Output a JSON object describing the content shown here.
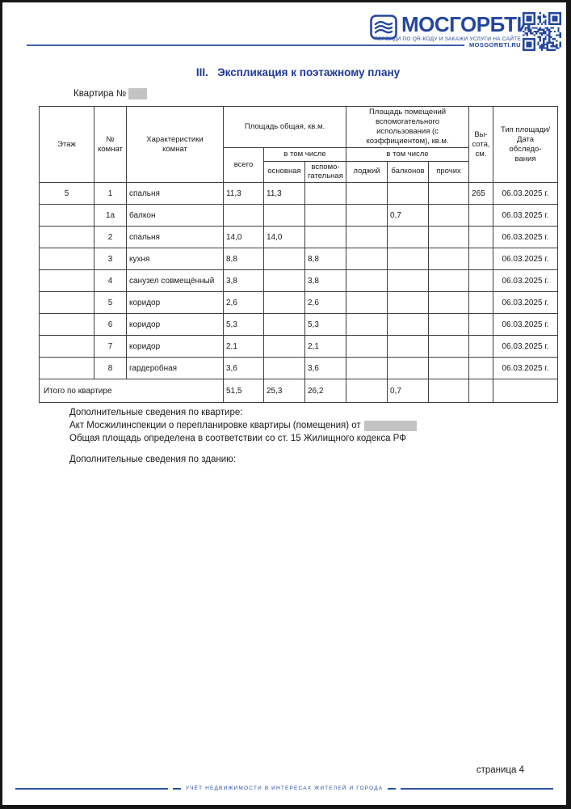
{
  "colors": {
    "brand_blue": "#23479c",
    "title_blue": "#1e3799",
    "rule_blue": "#3d5fa8",
    "footer_blue": "#2b52a3",
    "table_border": "#3f3f3f",
    "redaction_gray": "#c3c3c3",
    "page_border": "#161616"
  },
  "header": {
    "brand": "МОСГОРБТИ",
    "tagline": "ПЕРЕЙДИ ПО QR-КОДУ И ЗАКАЖИ УСЛУГИ НА САЙТЕ",
    "site": "MOSGORBTI.RU",
    "logo_icon": "wave-icon",
    "qr_icon": "qr-code-icon"
  },
  "document": {
    "title": "III.   Экспликация к поэтажному плану",
    "apartment_label": "Квартира №",
    "apartment_value_redacted": ""
  },
  "table": {
    "header": {
      "floor": "Этаж",
      "room_no": "№\nкомнат",
      "characteristics": "Характеристики\nкомнат",
      "total_area_group": "Площадь общая, кв.м.",
      "aux_area_group": "Площадь помещений вспомогательного использования (с коэффициентом), кв.м.",
      "total": "всего",
      "including": "в том числе",
      "including2": "в том числе",
      "main": "основная",
      "auxiliary": "вспомо-\nгательная",
      "loggias": "лоджий",
      "balconies": "балконов",
      "other": "прочих",
      "height": "Вы-\nсота,\nсм.",
      "type_date": "Тип площади/\nДата\nобследо-\nвания"
    },
    "rows": [
      [
        "5",
        "1",
        "спальня",
        "11,3",
        "11,3",
        "",
        "",
        "",
        "",
        "265",
        "06.03.2025 г."
      ],
      [
        "",
        "1а",
        "балкон",
        "",
        "",
        "",
        "",
        "0,7",
        "",
        "",
        "06.03.2025 г."
      ],
      [
        "",
        "2",
        "спальня",
        "14,0",
        "14,0",
        "",
        "",
        "",
        "",
        "",
        "06.03.2025 г."
      ],
      [
        "",
        "3",
        "кухня",
        "8,8",
        "",
        "8,8",
        "",
        "",
        "",
        "",
        "06.03.2025 г."
      ],
      [
        "",
        "4",
        "санузел совмещённый",
        "3,8",
        "",
        "3,8",
        "",
        "",
        "",
        "",
        "06.03.2025 г."
      ],
      [
        "",
        "5",
        "коридор",
        "2,6",
        "",
        "2,6",
        "",
        "",
        "",
        "",
        "06.03.2025 г."
      ],
      [
        "",
        "6",
        "коридор",
        "5,3",
        "",
        "5,3",
        "",
        "",
        "",
        "",
        "06.03.2025 г."
      ],
      [
        "",
        "7",
        "коридор",
        "2,1",
        "",
        "2,1",
        "",
        "",
        "",
        "",
        "06.03.2025 г."
      ],
      [
        "",
        "8",
        "гардеробная",
        "3,6",
        "",
        "3,6",
        "",
        "",
        "",
        "",
        "06.03.2025 г."
      ]
    ],
    "totals": {
      "label": "Итого по квартире",
      "values": [
        "51,5",
        "25,3",
        "26,2",
        "",
        "0,7",
        "",
        "",
        ""
      ]
    }
  },
  "notes": {
    "apartment_heading": "Дополнительные сведения по квартире:",
    "act_line_prefix": "Акт Мосжилинспекции о перепланировке квартиры (помещения) от",
    "act_value_redacted": "",
    "area_line": "Общая площадь определена в соответствии со ст. 15 Жилищного кодекса РФ",
    "building_heading": "Дополнительные сведения по зданию:"
  },
  "footer": {
    "page_label": "страница 4",
    "slogan": "УЧЁТ НЕДВИЖИМОСТИ В ИНТЕРЕСАХ ЖИТЕЛЕЙ И ГОРОДА"
  }
}
